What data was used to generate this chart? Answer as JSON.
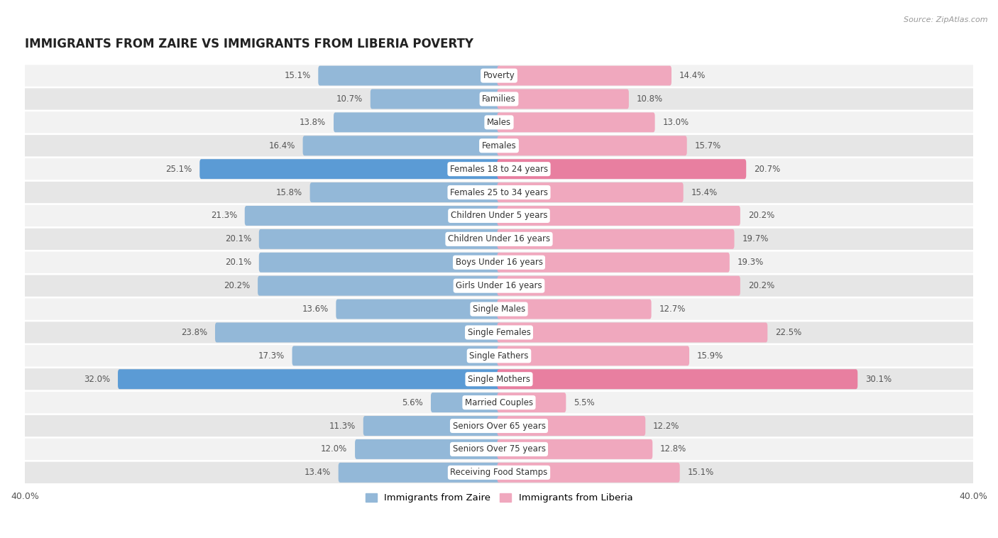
{
  "title": "IMMIGRANTS FROM ZAIRE VS IMMIGRANTS FROM LIBERIA POVERTY",
  "source": "Source: ZipAtlas.com",
  "categories": [
    "Poverty",
    "Families",
    "Males",
    "Females",
    "Females 18 to 24 years",
    "Females 25 to 34 years",
    "Children Under 5 years",
    "Children Under 16 years",
    "Boys Under 16 years",
    "Girls Under 16 years",
    "Single Males",
    "Single Females",
    "Single Fathers",
    "Single Mothers",
    "Married Couples",
    "Seniors Over 65 years",
    "Seniors Over 75 years",
    "Receiving Food Stamps"
  ],
  "zaire_values": [
    15.1,
    10.7,
    13.8,
    16.4,
    25.1,
    15.8,
    21.3,
    20.1,
    20.1,
    20.2,
    13.6,
    23.8,
    17.3,
    32.0,
    5.6,
    11.3,
    12.0,
    13.4
  ],
  "liberia_values": [
    14.4,
    10.8,
    13.0,
    15.7,
    20.7,
    15.4,
    20.2,
    19.7,
    19.3,
    20.2,
    12.7,
    22.5,
    15.9,
    30.1,
    5.5,
    12.2,
    12.8,
    15.1
  ],
  "zaire_color": "#93b8d8",
  "liberia_color": "#f0a8be",
  "zaire_highlight_color": "#5b9bd5",
  "liberia_highlight_color": "#e87fa0",
  "highlight_rows": [
    4,
    13
  ],
  "xlim": 40.0,
  "legend_zaire": "Immigrants from Zaire",
  "legend_liberia": "Immigrants from Liberia",
  "bg_color": "#ffffff",
  "row_bg_light": "#f2f2f2",
  "row_bg_dark": "#e6e6e6",
  "label_color": "#555555",
  "value_color": "#555555"
}
